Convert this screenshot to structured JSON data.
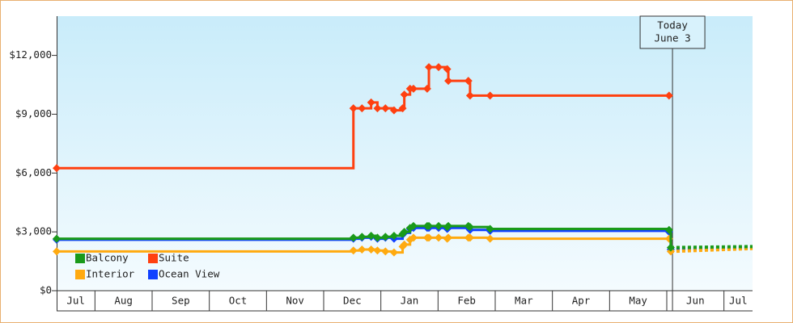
{
  "chart_data": {
    "type": "step-line",
    "x": [
      0.33,
      5.52,
      5.67,
      5.83,
      5.94,
      6.08,
      6.23,
      6.38,
      6.41,
      6.51,
      6.57,
      6.81,
      6.84,
      7.01,
      7.16,
      7.18,
      7.53,
      7.56,
      7.91,
      11.04,
      11.07,
      12.5
    ],
    "series": [
      {
        "name": "Balcony",
        "color": "#1a9a1a",
        "values": [
          2650,
          2700,
          2750,
          2800,
          2700,
          2750,
          2800,
          2900,
          3000,
          3200,
          3300,
          3300,
          3300,
          3300,
          3250,
          3300,
          3300,
          3250,
          3150,
          3100,
          2200,
          2250
        ]
      },
      {
        "name": "Suite",
        "color": "#ff4010",
        "values": [
          6250,
          9300,
          9300,
          9600,
          9300,
          9300,
          9200,
          9300,
          10000,
          10300,
          10300,
          10300,
          11400,
          11400,
          11300,
          10700,
          10700,
          9950,
          9950,
          9950,
          null,
          null
        ]
      },
      {
        "name": "Interior",
        "color": "#ffaa10",
        "values": [
          2000,
          2050,
          2100,
          2100,
          2050,
          2000,
          1950,
          2250,
          2350,
          2600,
          2700,
          2700,
          2700,
          2700,
          2650,
          2700,
          2700,
          2700,
          2650,
          2650,
          2000,
          2150
        ]
      },
      {
        "name": "Ocean View",
        "color": "#1040ff",
        "values": [
          2600,
          2650,
          2700,
          2750,
          2650,
          2700,
          2650,
          2850,
          2950,
          3150,
          3200,
          3200,
          3200,
          3200,
          3150,
          3200,
          3200,
          3100,
          3050,
          3000,
          2100,
          2200
        ]
      }
    ],
    "xlim": [
      0.33,
      12.5
    ],
    "xticks": [
      {
        "value": 0,
        "label": "Jul"
      },
      {
        "value": 1,
        "label": "Aug"
      },
      {
        "value": 2,
        "label": "Sep"
      },
      {
        "value": 3,
        "label": "Oct"
      },
      {
        "value": 4,
        "label": "Nov"
      },
      {
        "value": 5,
        "label": "Dec"
      },
      {
        "value": 6,
        "label": "Jan"
      },
      {
        "value": 7,
        "label": "Feb"
      },
      {
        "value": 8,
        "label": "Mar"
      },
      {
        "value": 9,
        "label": "Apr"
      },
      {
        "value": 10,
        "label": "May"
      },
      {
        "value": 11,
        "label": "Jun"
      },
      {
        "value": 12,
        "label": "Jul"
      }
    ],
    "ylim": [
      0,
      14000
    ],
    "yticks": [
      {
        "value": 0,
        "label": "$0"
      },
      {
        "value": 3000,
        "label": "$3,000"
      },
      {
        "value": 6000,
        "label": "$6,000"
      },
      {
        "value": 9000,
        "label": "$9,000"
      },
      {
        "value": 12000,
        "label": "$12,000"
      }
    ],
    "annotation": {
      "x": 11.1,
      "lines": [
        "Today",
        "June 3"
      ]
    },
    "legend": "lower-left"
  }
}
